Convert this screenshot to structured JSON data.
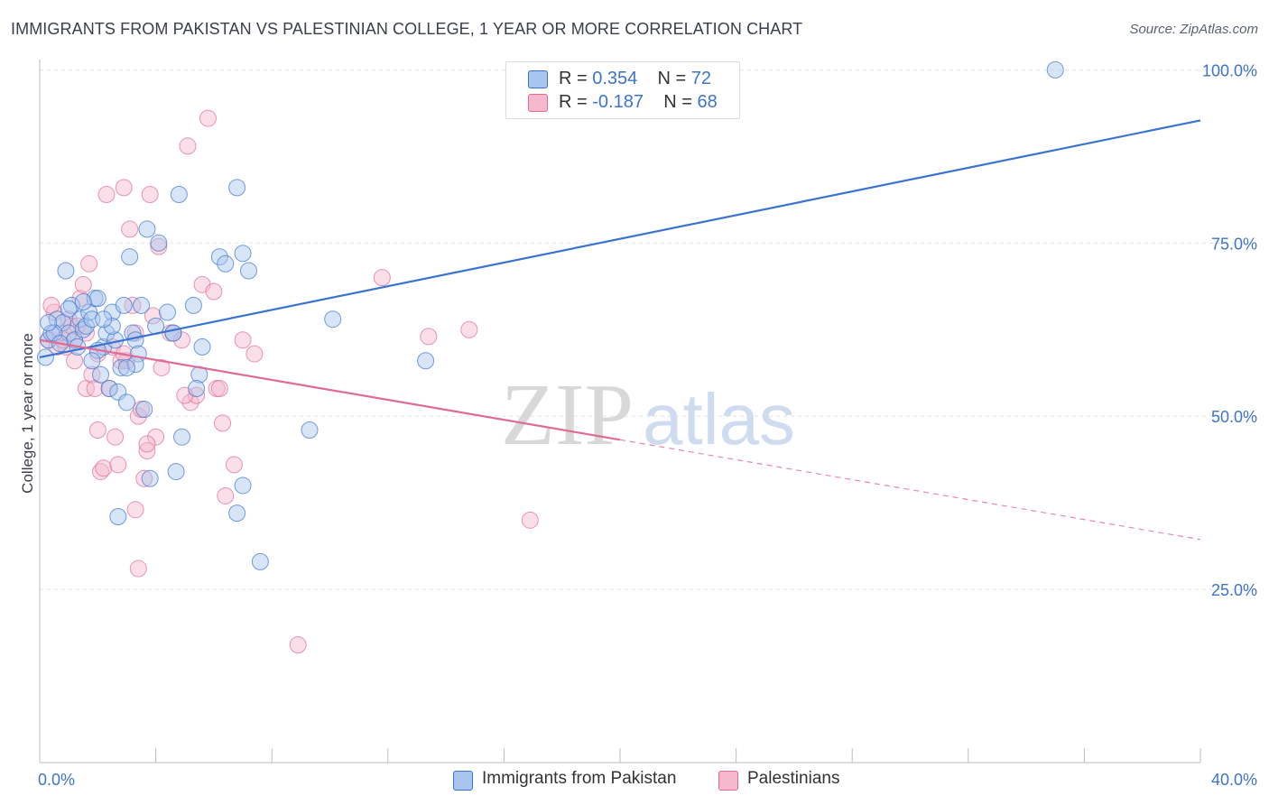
{
  "title": "IMMIGRANTS FROM PAKISTAN VS PALESTINIAN COLLEGE, 1 YEAR OR MORE CORRELATION CHART",
  "source": "Source: ZipAtlas.com",
  "watermark": {
    "zip": "ZIP",
    "atlas": "atlas"
  },
  "colors": {
    "blue": "#3a74d0",
    "blue_fill": "#a8c5ee",
    "pink": "#e06b95",
    "pink_fill": "#f5b8cc",
    "tick_text": "#3e74c9",
    "grid": "#dfe3e8"
  },
  "legend_top": {
    "rows": [
      {
        "r_label": "R = ",
        "r_value": "0.354",
        "n_label": "N = ",
        "n_value": "72",
        "color": "blue"
      },
      {
        "r_label": "R = ",
        "r_value": "-0.187",
        "n_label": "N = ",
        "n_value": "68",
        "color": "pink"
      }
    ]
  },
  "legend_bottom": [
    {
      "label": "Immigrants from Pakistan",
      "color": "blue"
    },
    {
      "label": "Palestinians",
      "color": "pink"
    }
  ],
  "chart_data": {
    "type": "scatter",
    "title": "IMMIGRANTS FROM PAKISTAN VS PALESTINIAN COLLEGE, 1 YEAR OR MORE CORRELATION CHART",
    "xlabel": "",
    "ylabel": "College, 1 year or more",
    "xlim": [
      0,
      40
    ],
    "ylim": [
      0,
      102
    ],
    "x_tick_labels": [
      "0.0%",
      "40.0%"
    ],
    "y_ticks": [
      25,
      50,
      75,
      100
    ],
    "y_tick_labels": [
      "25.0%",
      "50.0%",
      "75.0%",
      "100.0%"
    ],
    "grid": true,
    "legend_position": "top-center",
    "series": [
      {
        "name": "Immigrants from Pakistan",
        "color": "blue",
        "r": 0.354,
        "n": 72,
        "trend": {
          "x": [
            0,
            40
          ],
          "y": [
            58.5,
            92.7
          ],
          "dashed_from": null
        },
        "points": [
          [
            0.2,
            58.5
          ],
          [
            0.3,
            61
          ],
          [
            0.4,
            62
          ],
          [
            0.6,
            64
          ],
          [
            0.8,
            63.5
          ],
          [
            0.9,
            71
          ],
          [
            1.0,
            62
          ],
          [
            1.1,
            66
          ],
          [
            1.2,
            61
          ],
          [
            1.4,
            64
          ],
          [
            1.5,
            62.5
          ],
          [
            1.6,
            63
          ],
          [
            1.7,
            65
          ],
          [
            1.8,
            64
          ],
          [
            1.9,
            67
          ],
          [
            2.0,
            67
          ],
          [
            2.1,
            56
          ],
          [
            2.2,
            60
          ],
          [
            2.3,
            62
          ],
          [
            2.4,
            54
          ],
          [
            2.5,
            65
          ],
          [
            2.6,
            61
          ],
          [
            2.7,
            53.5
          ],
          [
            2.8,
            57
          ],
          [
            2.9,
            66
          ],
          [
            3.0,
            52
          ],
          [
            3.1,
            73
          ],
          [
            3.2,
            62
          ],
          [
            3.3,
            61
          ],
          [
            3.4,
            59
          ],
          [
            3.5,
            66
          ],
          [
            3.6,
            51
          ],
          [
            3.7,
            77
          ],
          [
            3.8,
            41
          ],
          [
            4.0,
            63
          ],
          [
            4.1,
            75
          ],
          [
            4.4,
            65
          ],
          [
            4.6,
            62
          ],
          [
            4.8,
            82
          ],
          [
            5.3,
            66
          ],
          [
            5.5,
            56
          ],
          [
            5.6,
            60
          ],
          [
            6.2,
            73
          ],
          [
            6.4,
            72
          ],
          [
            6.8,
            83
          ],
          [
            7.0,
            73.5
          ],
          [
            7.2,
            71
          ],
          [
            7.6,
            29
          ],
          [
            9.3,
            48
          ],
          [
            10.1,
            64
          ],
          [
            13.3,
            58
          ],
          [
            17.0,
            97
          ],
          [
            35.0,
            100
          ],
          [
            1.3,
            60
          ],
          [
            2.0,
            59.5
          ],
          [
            3.3,
            57.5
          ],
          [
            4.9,
            47
          ],
          [
            4.7,
            42
          ],
          [
            5.4,
            54
          ],
          [
            7.0,
            40
          ],
          [
            2.7,
            35.5
          ],
          [
            6.8,
            36
          ],
          [
            1.8,
            58
          ],
          [
            0.5,
            62
          ],
          [
            0.7,
            60.5
          ],
          [
            1.0,
            65.5
          ],
          [
            2.5,
            63
          ],
          [
            0.3,
            63.5
          ],
          [
            4.6,
            62
          ],
          [
            1.5,
            66.5
          ],
          [
            3.0,
            57
          ],
          [
            2.2,
            64
          ]
        ]
      },
      {
        "name": "Palestinians",
        "color": "pink",
        "r": -0.187,
        "n": 68,
        "trend": {
          "x": [
            0,
            40
          ],
          "y": [
            61,
            32.2
          ],
          "dashed_from": 20
        },
        "points": [
          [
            0.3,
            61
          ],
          [
            0.5,
            65
          ],
          [
            0.7,
            62
          ],
          [
            0.9,
            60
          ],
          [
            1.0,
            64
          ],
          [
            1.1,
            63
          ],
          [
            1.2,
            61
          ],
          [
            1.4,
            67
          ],
          [
            1.5,
            69
          ],
          [
            1.6,
            54
          ],
          [
            1.7,
            72
          ],
          [
            1.8,
            56
          ],
          [
            1.9,
            54
          ],
          [
            2.0,
            48
          ],
          [
            2.1,
            42
          ],
          [
            2.2,
            42.5
          ],
          [
            2.3,
            82
          ],
          [
            2.5,
            60
          ],
          [
            2.6,
            47
          ],
          [
            2.7,
            43
          ],
          [
            2.8,
            58
          ],
          [
            2.9,
            83
          ],
          [
            3.0,
            58
          ],
          [
            3.1,
            77
          ],
          [
            3.2,
            66
          ],
          [
            3.3,
            62
          ],
          [
            3.4,
            50
          ],
          [
            3.5,
            51
          ],
          [
            3.6,
            41
          ],
          [
            3.7,
            45
          ],
          [
            3.8,
            82
          ],
          [
            4.0,
            47
          ],
          [
            4.2,
            57
          ],
          [
            4.5,
            62
          ],
          [
            4.9,
            61
          ],
          [
            5.1,
            89
          ],
          [
            5.2,
            52
          ],
          [
            5.4,
            53
          ],
          [
            5.6,
            69
          ],
          [
            5.8,
            93
          ],
          [
            6.0,
            68
          ],
          [
            6.1,
            54
          ],
          [
            6.3,
            49
          ],
          [
            6.4,
            38.5
          ],
          [
            6.7,
            43
          ],
          [
            7.0,
            61
          ],
          [
            7.4,
            59
          ],
          [
            8.9,
            17
          ],
          [
            11.8,
            70
          ],
          [
            13.4,
            61.5
          ],
          [
            14.8,
            62.5
          ],
          [
            16.9,
            35
          ],
          [
            3.4,
            28
          ],
          [
            3.3,
            36.5
          ],
          [
            0.6,
            60
          ],
          [
            1.3,
            63
          ],
          [
            2.4,
            54
          ],
          [
            3.9,
            64.5
          ],
          [
            4.1,
            74.5
          ],
          [
            2.0,
            59
          ],
          [
            0.8,
            61
          ],
          [
            1.2,
            58
          ],
          [
            6.2,
            54
          ],
          [
            5.0,
            53
          ],
          [
            2.9,
            59
          ],
          [
            0.4,
            66
          ],
          [
            1.6,
            62
          ],
          [
            3.7,
            46
          ]
        ]
      }
    ]
  }
}
